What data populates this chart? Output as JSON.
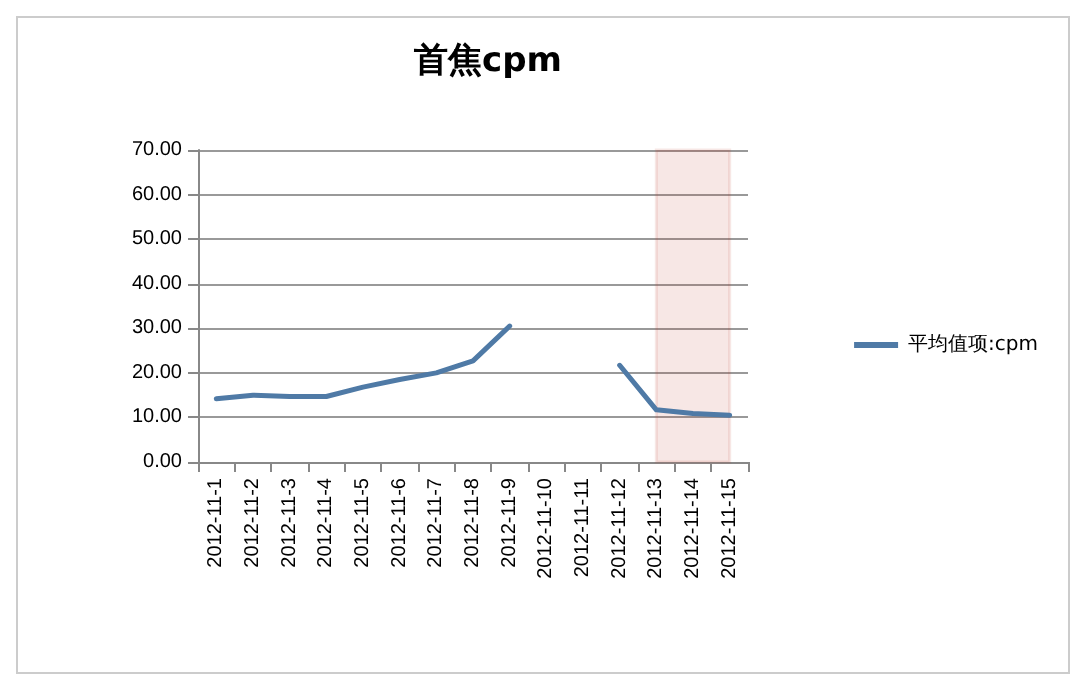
{
  "chart_data": {
    "type": "line",
    "title": "首焦cpm",
    "categories": [
      "2012-11-1",
      "2012-11-2",
      "2012-11-3",
      "2012-11-4",
      "2012-11-5",
      "2012-11-6",
      "2012-11-7",
      "2012-11-8",
      "2012-11-9",
      "2012-11-10",
      "2012-11-11",
      "2012-11-12",
      "2012-11-13",
      "2012-11-14",
      "2012-11-15"
    ],
    "series": [
      {
        "name": "平均值项:cpm",
        "color": "#4f7aa6",
        "values": [
          14.2,
          15,
          14.7,
          14.7,
          16.8,
          18.5,
          20,
          22.7,
          30.5,
          null,
          null,
          21.7,
          11.7,
          10.9,
          10.5
        ]
      }
    ],
    "ylim": [
      0,
      70
    ],
    "yticks": [
      {
        "value": 0,
        "label": "0.00"
      },
      {
        "value": 10,
        "label": "10.00"
      },
      {
        "value": 20,
        "label": "20.00"
      },
      {
        "value": 30,
        "label": "30.00"
      },
      {
        "value": 40,
        "label": "40.00"
      },
      {
        "value": 50,
        "label": "50.00"
      },
      {
        "value": 60,
        "label": "60.00"
      },
      {
        "value": 70,
        "label": "70.00"
      }
    ],
    "grid": "y",
    "legend": "right",
    "marker": "none",
    "line_style": "solid",
    "bands": [
      {
        "axis": "x",
        "from": "2012-11-13",
        "to": "2012-11-15",
        "color": "#c0392b"
      }
    ]
  }
}
